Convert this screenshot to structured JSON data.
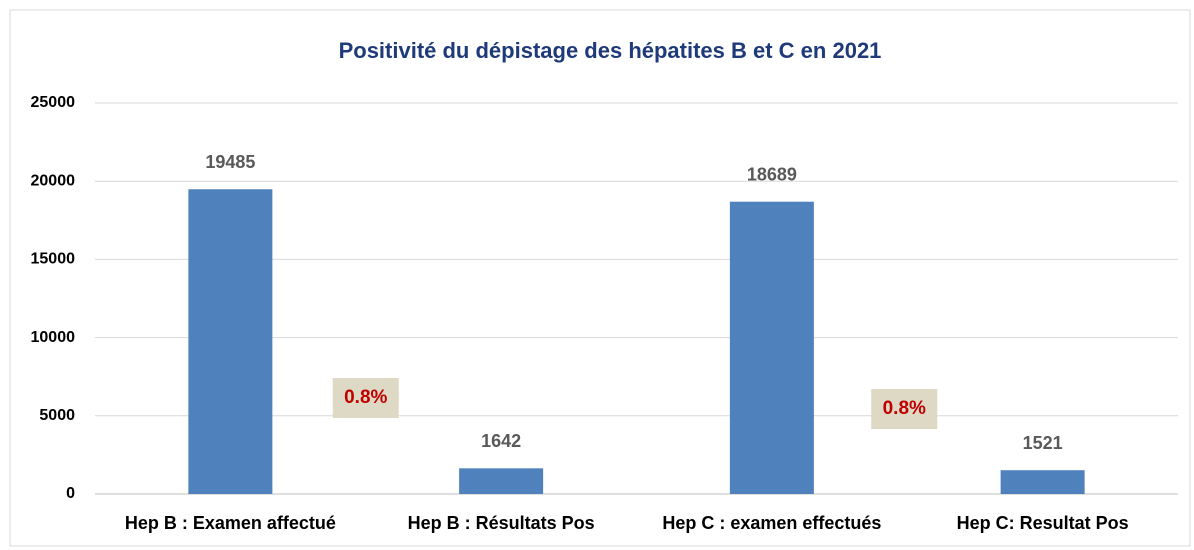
{
  "chart_data": {
    "type": "bar",
    "title": "Positivité du dépistage des hépatites B et C en 2021",
    "categories": [
      "Hep B : Examen affectué",
      "Hep B : Résultats Pos",
      "Hep C : examen effectués",
      "Hep C: Resultat Pos"
    ],
    "values": [
      19485,
      1642,
      18689,
      1521
    ],
    "color": "#4f81bd",
    "ylim": [
      0,
      25000
    ],
    "yticks": [
      0,
      5000,
      10000,
      15000,
      20000,
      25000
    ],
    "grid": true,
    "annotations": [
      "0.8%",
      "0.8%"
    ]
  }
}
